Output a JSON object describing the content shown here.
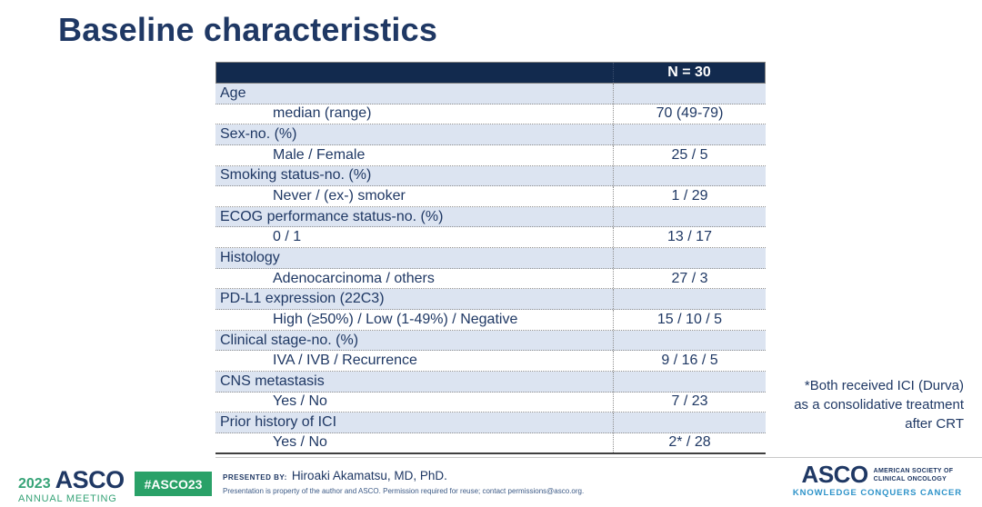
{
  "colors": {
    "navy_text": "#1f3864",
    "table_header_bg": "#122a4e",
    "category_row_bg": "#dce4f1",
    "logo_green": "#36a377",
    "badge_green": "#2aa168",
    "tagline_blue": "#2e93c9"
  },
  "title": "Baseline characteristics",
  "table": {
    "header": {
      "label": "",
      "value": "N = 30"
    },
    "rows": [
      {
        "type": "category",
        "label": "Age",
        "value": ""
      },
      {
        "type": "data",
        "label": "median (range)",
        "value": "70 (49-79)"
      },
      {
        "type": "category",
        "label": "Sex-no. (%)",
        "value": ""
      },
      {
        "type": "data",
        "label": "Male / Female",
        "value": "25 / 5"
      },
      {
        "type": "category",
        "label": "Smoking status-no. (%)",
        "value": ""
      },
      {
        "type": "data",
        "label": "Never / (ex-) smoker",
        "value": "1 / 29"
      },
      {
        "type": "category",
        "label": "ECOG performance status-no. (%)",
        "value": ""
      },
      {
        "type": "data",
        "label": "0 / 1",
        "value": "13 / 17"
      },
      {
        "type": "category",
        "label": "Histology",
        "value": ""
      },
      {
        "type": "data",
        "label": "Adenocarcinoma / others",
        "value": "27 / 3"
      },
      {
        "type": "category",
        "label": "PD-L1 expression (22C3)",
        "value": ""
      },
      {
        "type": "data",
        "label": "High (≥50%) / Low (1-49%) / Negative",
        "value": "15 / 10 / 5"
      },
      {
        "type": "category",
        "label": "Clinical stage-no. (%)",
        "value": ""
      },
      {
        "type": "data",
        "label": "IVA / IVB / Recurrence",
        "value": "9 / 16 / 5"
      },
      {
        "type": "category",
        "label": "CNS metastasis",
        "value": ""
      },
      {
        "type": "data",
        "label": "Yes / No",
        "value": "7 / 23"
      },
      {
        "type": "category",
        "label": "Prior history of ICI",
        "value": ""
      },
      {
        "type": "data",
        "label": "Yes / No",
        "value": "2* / 28"
      }
    ]
  },
  "annotation": {
    "lines": [
      "*Both received ICI (Durva)",
      "as a consolidative treatment",
      "after CRT"
    ]
  },
  "footer": {
    "meeting_logo": {
      "year": "2023",
      "name": "ASCO",
      "subtitle": "ANNUAL MEETING"
    },
    "hashtag": "#ASCO23",
    "presented_by_label": "PRESENTED BY:",
    "presenter": "Hiroaki Akamatsu, MD, PhD.",
    "disclaimer": "Presentation is property of the author and ASCO. Permission required for reuse; contact permissions@asco.org.",
    "society_logo": {
      "name": "ASCO",
      "org_line1": "AMERICAN SOCIETY OF",
      "org_line2": "CLINICAL ONCOLOGY",
      "tagline": "KNOWLEDGE CONQUERS CANCER"
    }
  }
}
